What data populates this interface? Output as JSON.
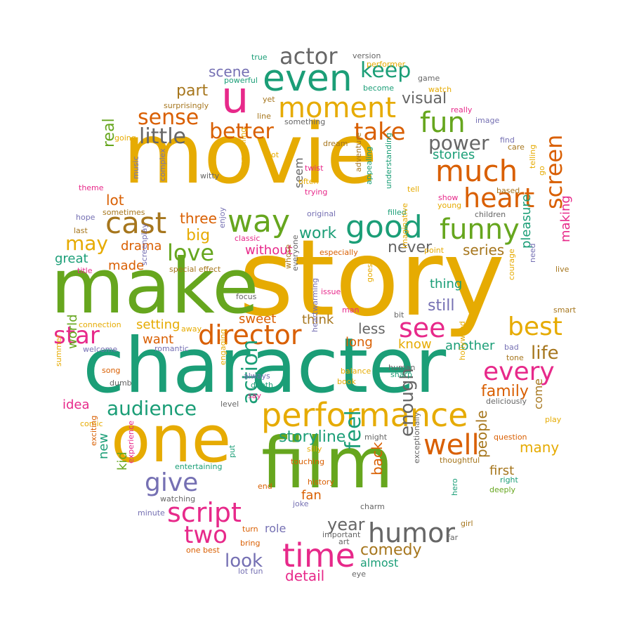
{
  "palette": {
    "gold": "#e6ab02",
    "green": "#66a61e",
    "teal": "#1b9e77",
    "orange": "#d95f02",
    "pink": "#e7298a",
    "purple": "#7570b3",
    "brown": "#a6761d",
    "gray": "#666666"
  },
  "words": [
    {
      "t": "story",
      "c": "gold"
    },
    {
      "t": "movie",
      "c": "gold"
    },
    {
      "t": "character",
      "c": "teal"
    },
    {
      "t": "make",
      "c": "green"
    },
    {
      "t": "film",
      "c": "green"
    },
    {
      "t": "one",
      "c": "gold"
    },
    {
      "t": "u",
      "c": "pink"
    },
    {
      "t": "performance",
      "c": "gold"
    },
    {
      "t": "time",
      "c": "pink"
    },
    {
      "t": "even",
      "c": "teal"
    },
    {
      "t": "good",
      "c": "teal"
    },
    {
      "t": "funny",
      "c": "green"
    },
    {
      "t": "much",
      "c": "orange"
    },
    {
      "t": "moment",
      "c": "gold"
    },
    {
      "t": "way",
      "c": "green"
    },
    {
      "t": "cast",
      "c": "brown"
    },
    {
      "t": "director",
      "c": "orange"
    },
    {
      "t": "script",
      "c": "pink"
    },
    {
      "t": "humor",
      "c": "gray"
    },
    {
      "t": "give",
      "c": "purple"
    },
    {
      "t": "well",
      "c": "orange"
    },
    {
      "t": "heart",
      "c": "orange"
    },
    {
      "t": "actor",
      "c": "gray"
    },
    {
      "t": "take",
      "c": "orange"
    },
    {
      "t": "better",
      "c": "orange"
    },
    {
      "t": "see",
      "c": "pink"
    },
    {
      "t": "best",
      "c": "gold"
    },
    {
      "t": "every",
      "c": "pink"
    },
    {
      "t": "fun",
      "c": "green"
    },
    {
      "t": "two",
      "c": "pink"
    },
    {
      "t": "star",
      "c": "pink"
    },
    {
      "t": "screen",
      "c": "orange"
    },
    {
      "t": "love",
      "c": "green"
    },
    {
      "t": "keep",
      "c": "teal"
    },
    {
      "t": "little",
      "c": "gray"
    },
    {
      "t": "sense",
      "c": "orange"
    },
    {
      "t": "action",
      "c": "teal"
    },
    {
      "t": "feel",
      "c": "teal"
    },
    {
      "t": "audience",
      "c": "teal"
    },
    {
      "t": "may",
      "c": "gold"
    },
    {
      "t": "power",
      "c": "gray"
    },
    {
      "t": "enough",
      "c": "gray"
    },
    {
      "t": "life",
      "c": "brown"
    },
    {
      "t": "look",
      "c": "purple"
    },
    {
      "t": "year",
      "c": "gray"
    },
    {
      "t": "family",
      "c": "orange"
    },
    {
      "t": "never",
      "c": "gray"
    },
    {
      "t": "comedy",
      "c": "brown"
    },
    {
      "t": "real",
      "c": "green"
    },
    {
      "t": "big",
      "c": "gold"
    },
    {
      "t": "part",
      "c": "brown"
    },
    {
      "t": "scene",
      "c": "purple"
    },
    {
      "t": "visual",
      "c": "gray"
    },
    {
      "t": "people",
      "c": "brown"
    },
    {
      "t": "back",
      "c": "orange"
    },
    {
      "t": "many",
      "c": "gold"
    },
    {
      "t": "storyline",
      "c": "teal"
    },
    {
      "t": "detail",
      "c": "pink"
    },
    {
      "t": "still",
      "c": "purple"
    },
    {
      "t": "pleasure",
      "c": "teal"
    },
    {
      "t": "series",
      "c": "brown"
    },
    {
      "t": "work",
      "c": "teal"
    },
    {
      "t": "less",
      "c": "gray"
    },
    {
      "t": "lot",
      "c": "orange"
    },
    {
      "t": "three",
      "c": "orange"
    },
    {
      "t": "stories",
      "c": "teal"
    },
    {
      "t": "making",
      "c": "pink"
    },
    {
      "t": "thing",
      "c": "teal"
    },
    {
      "t": "drama",
      "c": "orange"
    },
    {
      "t": "great",
      "c": "teal"
    },
    {
      "t": "made",
      "c": "orange"
    },
    {
      "t": "without",
      "c": "pink"
    },
    {
      "t": "setting",
      "c": "gold"
    },
    {
      "t": "sweet",
      "c": "orange"
    },
    {
      "t": "think",
      "c": "brown"
    },
    {
      "t": "want",
      "c": "orange"
    },
    {
      "t": "know",
      "c": "gold"
    },
    {
      "t": "another",
      "c": "teal"
    },
    {
      "t": "long",
      "c": "orange"
    },
    {
      "t": "world",
      "c": "green"
    },
    {
      "t": "idea",
      "c": "pink"
    },
    {
      "t": "come",
      "c": "brown"
    },
    {
      "t": "first",
      "c": "brown"
    },
    {
      "t": "fan",
      "c": "orange"
    },
    {
      "t": "kid",
      "c": "green"
    },
    {
      "t": "new",
      "c": "teal"
    },
    {
      "t": "role",
      "c": "purple"
    },
    {
      "t": "almost",
      "c": "teal"
    },
    {
      "t": "seem",
      "c": "gray"
    },
    {
      "t": "true",
      "c": "teal"
    },
    {
      "t": "version",
      "c": "gray"
    },
    {
      "t": "performer",
      "c": "gold"
    },
    {
      "t": "game",
      "c": "gray"
    },
    {
      "t": "powerful",
      "c": "teal"
    },
    {
      "t": "become",
      "c": "teal"
    },
    {
      "t": "watch",
      "c": "gold"
    },
    {
      "t": "surprisingly",
      "c": "brown"
    },
    {
      "t": "yet",
      "c": "brown"
    },
    {
      "t": "line",
      "c": "brown"
    },
    {
      "t": "really",
      "c": "pink"
    },
    {
      "t": "something",
      "c": "gray"
    },
    {
      "t": "image",
      "c": "purple"
    },
    {
      "t": "going",
      "c": "gold"
    },
    {
      "t": "dream",
      "c": "brown"
    },
    {
      "t": "find",
      "c": "purple"
    },
    {
      "t": "care",
      "c": "brown"
    },
    {
      "t": "plot",
      "c": "gold"
    },
    {
      "t": "twist",
      "c": "pink"
    },
    {
      "t": "adventure",
      "c": "brown"
    },
    {
      "t": "appealing",
      "c": "teal"
    },
    {
      "t": "understanding",
      "c": "teal"
    },
    {
      "t": "witty",
      "c": "gray"
    },
    {
      "t": "music",
      "c": "purple"
    },
    {
      "t": "complex",
      "c": "purple"
    },
    {
      "t": "compelling",
      "c": "gold"
    },
    {
      "t": "often",
      "c": "gold"
    },
    {
      "t": "trying",
      "c": "pink"
    },
    {
      "t": "tell",
      "c": "gold"
    },
    {
      "t": "show",
      "c": "pink"
    },
    {
      "t": "young",
      "c": "gold"
    },
    {
      "t": "based",
      "c": "brown"
    },
    {
      "t": "telling",
      "c": "gold"
    },
    {
      "t": "go",
      "c": "gold"
    },
    {
      "t": "theme",
      "c": "pink"
    },
    {
      "t": "sometimes",
      "c": "brown"
    },
    {
      "t": "hope",
      "c": "purple"
    },
    {
      "t": "original",
      "c": "purple"
    },
    {
      "t": "filled",
      "c": "teal"
    },
    {
      "t": "children",
      "c": "gray"
    },
    {
      "t": "last",
      "c": "brown"
    },
    {
      "t": "enjoy",
      "c": "purple"
    },
    {
      "t": "classic",
      "c": "pink"
    },
    {
      "t": "especially",
      "c": "orange"
    },
    {
      "t": "point",
      "c": "gold"
    },
    {
      "t": "title",
      "c": "pink"
    },
    {
      "t": "special effect",
      "c": "brown"
    },
    {
      "t": "imaginative",
      "c": "gold"
    },
    {
      "t": "whose",
      "c": "brown"
    },
    {
      "t": "need",
      "c": "purple"
    },
    {
      "t": "live",
      "c": "brown"
    },
    {
      "t": "screenplay",
      "c": "purple"
    },
    {
      "t": "focus",
      "c": "gray"
    },
    {
      "t": "issue",
      "c": "pink"
    },
    {
      "t": "courage",
      "c": "gold"
    },
    {
      "t": "smart",
      "c": "brown"
    },
    {
      "t": "everyone",
      "c": "gray"
    },
    {
      "t": "goes",
      "c": "gold"
    },
    {
      "t": "man",
      "c": "pink"
    },
    {
      "t": "bit",
      "c": "gray"
    },
    {
      "t": "connection",
      "c": "gold"
    },
    {
      "t": "away",
      "c": "gold"
    },
    {
      "t": "tone",
      "c": "brown"
    },
    {
      "t": "welcome",
      "c": "purple"
    },
    {
      "t": "romantic",
      "c": "purple"
    },
    {
      "t": "bad",
      "c": "purple"
    },
    {
      "t": "heartwarming",
      "c": "purple"
    },
    {
      "t": "song",
      "c": "orange"
    },
    {
      "t": "balance",
      "c": "gold"
    },
    {
      "t": "human",
      "c": "gray"
    },
    {
      "t": "always",
      "c": "purple"
    },
    {
      "t": "sharp",
      "c": "teal"
    },
    {
      "t": "book",
      "c": "gold"
    },
    {
      "t": "hollywood",
      "c": "gold"
    },
    {
      "t": "summer",
      "c": "gold"
    },
    {
      "t": "dumb",
      "c": "gray"
    },
    {
      "t": "depth",
      "c": "teal"
    },
    {
      "t": "engaging",
      "c": "gold"
    },
    {
      "t": "say",
      "c": "pink"
    },
    {
      "t": "deliciously",
      "c": "gray"
    },
    {
      "t": "level",
      "c": "gray"
    },
    {
      "t": "play",
      "c": "gold"
    },
    {
      "t": "comic",
      "c": "gold"
    },
    {
      "t": "might",
      "c": "gray"
    },
    {
      "t": "question",
      "c": "orange"
    },
    {
      "t": "exciting",
      "c": "orange"
    },
    {
      "t": "silly",
      "c": "gold"
    },
    {
      "t": "thoughtful",
      "c": "brown"
    },
    {
      "t": "entertaining",
      "c": "teal"
    },
    {
      "t": "touching",
      "c": "orange"
    },
    {
      "t": "exceptionally",
      "c": "gray"
    },
    {
      "t": "experience",
      "c": "pink"
    },
    {
      "t": "put",
      "c": "teal"
    },
    {
      "t": "end",
      "c": "orange"
    },
    {
      "t": "history",
      "c": "orange"
    },
    {
      "t": "right",
      "c": "teal"
    },
    {
      "t": "deeply",
      "c": "green"
    },
    {
      "t": "watching",
      "c": "gray"
    },
    {
      "t": "joke",
      "c": "purple"
    },
    {
      "t": "charm",
      "c": "gray"
    },
    {
      "t": "hero",
      "c": "teal"
    },
    {
      "t": "minute",
      "c": "purple"
    },
    {
      "t": "turn",
      "c": "orange"
    },
    {
      "t": "important",
      "c": "gray"
    },
    {
      "t": "girl",
      "c": "brown"
    },
    {
      "t": "far",
      "c": "gray"
    },
    {
      "t": "bring",
      "c": "orange"
    },
    {
      "t": "art",
      "c": "gray"
    },
    {
      "t": "one best",
      "c": "orange"
    },
    {
      "t": "lot fun",
      "c": "purple"
    },
    {
      "t": "eye",
      "c": "gray"
    }
  ]
}
